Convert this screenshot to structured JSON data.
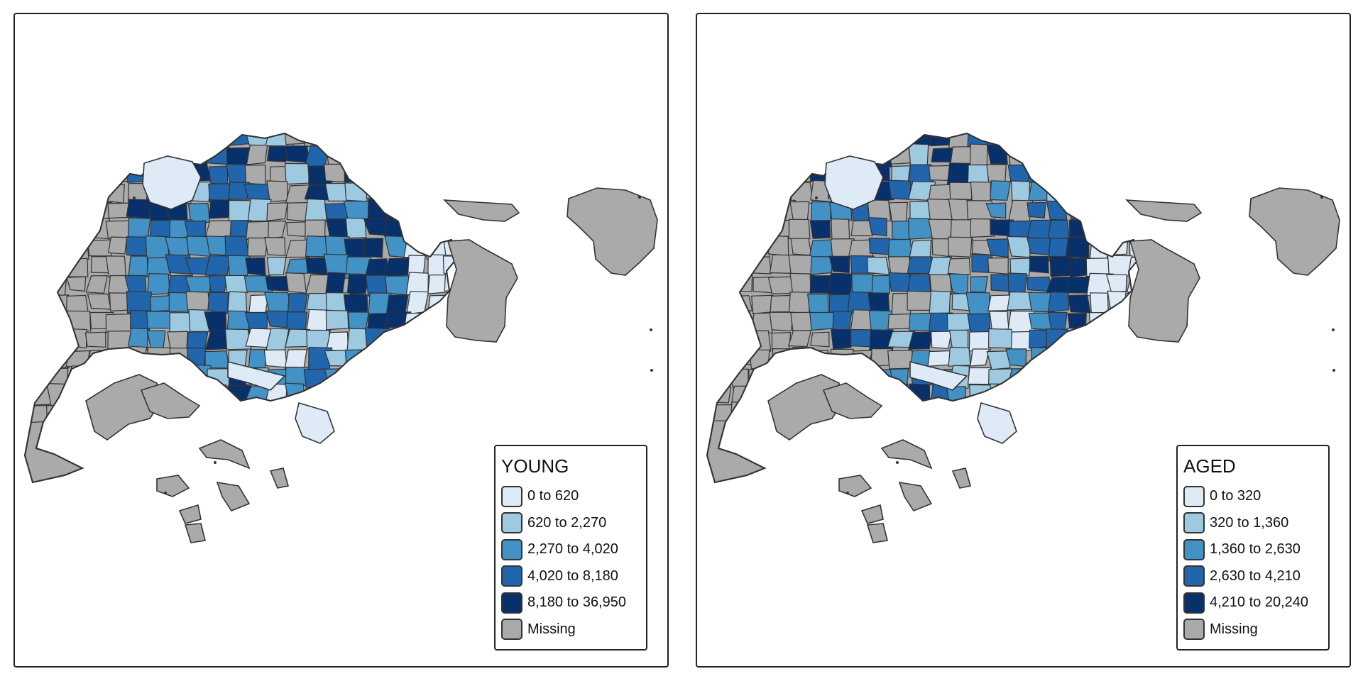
{
  "colors": {
    "outline": "#333333",
    "missing": "#aaaaaa",
    "class1": "#deebf7",
    "class2": "#9ecae1",
    "class3": "#4292c6",
    "class4": "#2166ac",
    "class5": "#08306b"
  },
  "maps": [
    {
      "variable": "YOUNG",
      "legend": {
        "title": "YOUNG",
        "items": [
          {
            "label": "0 to 620",
            "color_key": "class1"
          },
          {
            "label": "620 to 2,270",
            "color_key": "class2"
          },
          {
            "label": "2,270 to 4,020",
            "color_key": "class3"
          },
          {
            "label": "4,020 to 8,180",
            "color_key": "class4"
          },
          {
            "label": "8,180 to 36,950",
            "color_key": "class5"
          },
          {
            "label": "Missing",
            "color_key": "missing"
          }
        ]
      }
    },
    {
      "variable": "AGED",
      "legend": {
        "title": "AGED",
        "items": [
          {
            "label": "0 to 320",
            "color_key": "class1"
          },
          {
            "label": "320 to 1,360",
            "color_key": "class2"
          },
          {
            "label": "1,360 to 2,630",
            "color_key": "class3"
          },
          {
            "label": "2,630 to 4,210",
            "color_key": "class4"
          },
          {
            "label": "4,210 to 20,240",
            "color_key": "class5"
          },
          {
            "label": "Missing",
            "color_key": "missing"
          }
        ]
      }
    }
  ]
}
